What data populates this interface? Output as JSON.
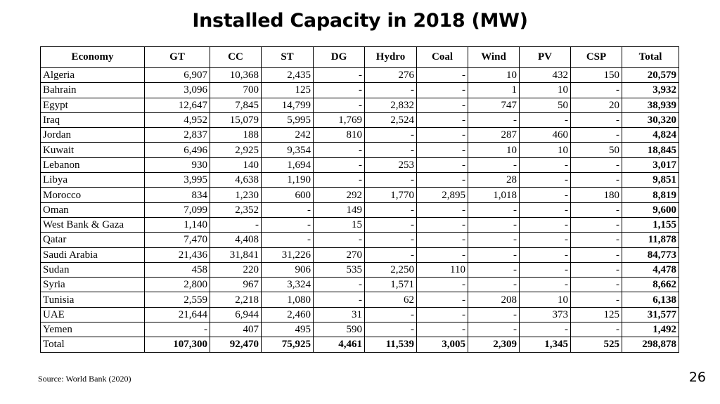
{
  "title": "Installed Capacity in 2018 (MW)",
  "table": {
    "headers": [
      "Economy",
      "GT",
      "CC",
      "ST",
      "DG",
      "Hydro",
      "Coal",
      "Wind",
      "PV",
      "CSP",
      "Total"
    ],
    "rows": [
      [
        "Algeria",
        "6,907",
        "10,368",
        "2,435",
        "-",
        "276",
        "-",
        "10",
        "432",
        "150",
        "20,579"
      ],
      [
        "Bahrain",
        "3,096",
        "700",
        "125",
        "-",
        "-",
        "-",
        "1",
        "10",
        "-",
        "3,932"
      ],
      [
        "Egypt",
        "12,647",
        "7,845",
        "14,799",
        "-",
        "2,832",
        "-",
        "747",
        "50",
        "20",
        "38,939"
      ],
      [
        "Iraq",
        "4,952",
        "15,079",
        "5,995",
        "1,769",
        "2,524",
        "-",
        "-",
        "-",
        "-",
        "30,320"
      ],
      [
        "Jordan",
        "2,837",
        "188",
        "242",
        "810",
        "-",
        "-",
        "287",
        "460",
        "-",
        "4,824"
      ],
      [
        "Kuwait",
        "6,496",
        "2,925",
        "9,354",
        "-",
        "-",
        "-",
        "10",
        "10",
        "50",
        "18,845"
      ],
      [
        "Lebanon",
        "930",
        "140",
        "1,694",
        "-",
        "253",
        "-",
        "-",
        "-",
        "-",
        "3,017"
      ],
      [
        "Libya",
        "3,995",
        "4,638",
        "1,190",
        "-",
        "-",
        "-",
        "28",
        "-",
        "-",
        "9,851"
      ],
      [
        "Morocco",
        "834",
        "1,230",
        "600",
        "292",
        "1,770",
        "2,895",
        "1,018",
        "-",
        "180",
        "8,819"
      ],
      [
        "Oman",
        "7,099",
        "2,352",
        "-",
        "149",
        "-",
        "-",
        "-",
        "-",
        "-",
        "9,600"
      ],
      [
        "West Bank & Gaza",
        "1,140",
        "-",
        "-",
        "15",
        "-",
        "-",
        "-",
        "-",
        "-",
        "1,155"
      ],
      [
        "Qatar",
        "7,470",
        "4,408",
        "-",
        "-",
        "-",
        "-",
        "-",
        "-",
        "-",
        "11,878"
      ],
      [
        "Saudi Arabia",
        "21,436",
        "31,841",
        "31,226",
        "270",
        "-",
        "-",
        "-",
        "-",
        "-",
        "84,773"
      ],
      [
        "Sudan",
        "458",
        "220",
        "906",
        "535",
        "2,250",
        "110",
        "-",
        "-",
        "-",
        "4,478"
      ],
      [
        "Syria",
        "2,800",
        "967",
        "3,324",
        "-",
        "1,571",
        "-",
        "-",
        "-",
        "-",
        "8,662"
      ],
      [
        "Tunisia",
        "2,559",
        "2,218",
        "1,080",
        "-",
        "62",
        "-",
        "208",
        "10",
        "-",
        "6,138"
      ],
      [
        "UAE",
        "21,644",
        "6,944",
        "2,460",
        "31",
        "-",
        "-",
        "-",
        "373",
        "125",
        "31,577"
      ],
      [
        "Yemen",
        "-",
        "407",
        "495",
        "590",
        "-",
        "-",
        "-",
        "-",
        "-",
        "1,492"
      ]
    ],
    "total_row": [
      "Total",
      "107,300",
      "92,470",
      "75,925",
      "4,461",
      "11,539",
      "3,005",
      "2,309",
      "1,345",
      "525",
      "298,878"
    ]
  },
  "source": "Source: World Bank (2020)",
  "page_number": "26"
}
